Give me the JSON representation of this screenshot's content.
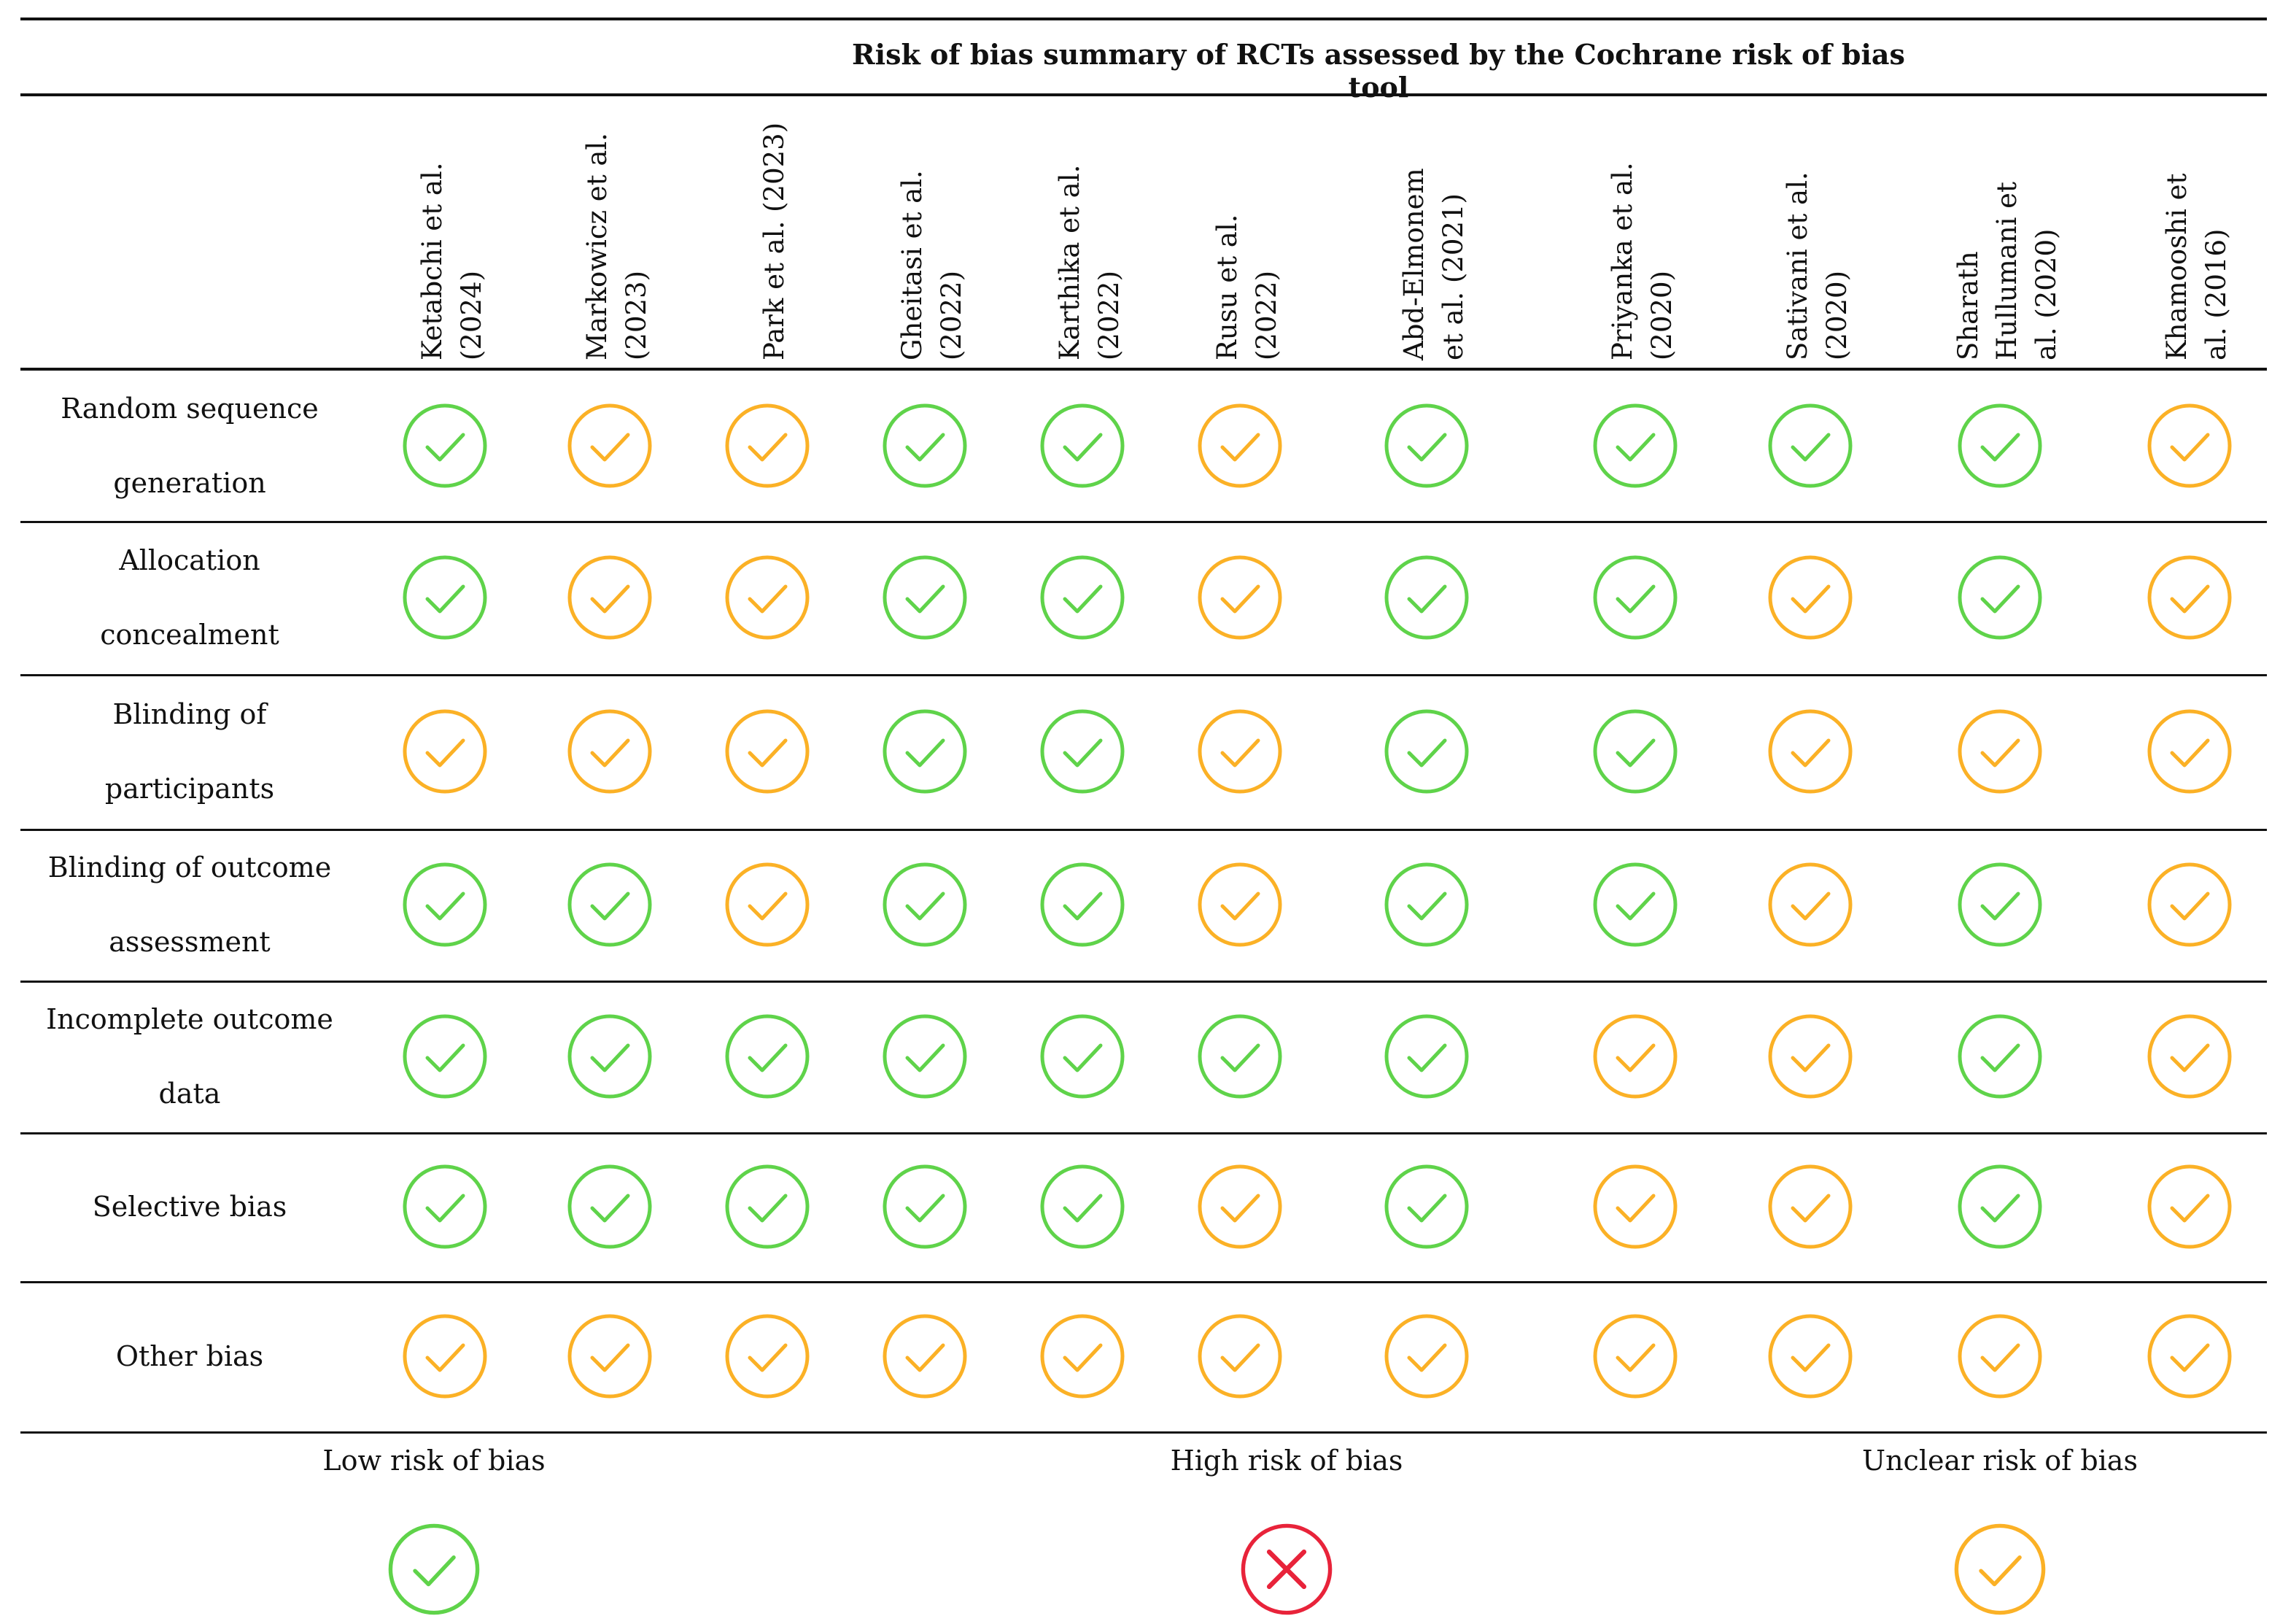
{
  "title": "Risk of bias summary of RCTs assessed by the Cochrane risk of bias tool",
  "colors": {
    "low": "#5fd34a",
    "unclear": "#fbb126",
    "high": "#e8233a",
    "rule": "#111111"
  },
  "studies": [
    {
      "line1": "Ketabchi et al.",
      "line2": "(2024)"
    },
    {
      "line1": "Markowicz et al.",
      "line2": "(2023)"
    },
    {
      "line1": "Park et al. (2023)",
      "line2": ""
    },
    {
      "line1": "Gheitasi et al.",
      "line2": "(2022)"
    },
    {
      "line1": "Karthika et al.",
      "line2": "(2022)"
    },
    {
      "line1": "Rusu et al.",
      "line2": "(2022)"
    },
    {
      "line1": "Abd-Elmonem",
      "line2": "et al. (2021)"
    },
    {
      "line1": "Priyanka et al.",
      "line2": "(2020)"
    },
    {
      "line1": "Sativani et al.",
      "line2": "(2020)"
    },
    {
      "line1": "Sharath",
      "line2": "Hullumani et",
      "line3": "al. (2020)"
    },
    {
      "line1": "Khamooshi et",
      "line2": "al. (2016)"
    }
  ],
  "domains": [
    {
      "line1": "Random sequence",
      "line2": "generation",
      "ratings": [
        "low",
        "unclear",
        "unclear",
        "low",
        "low",
        "unclear",
        "low",
        "low",
        "low",
        "low",
        "unclear"
      ]
    },
    {
      "line1": "Allocation",
      "line2": "concealment",
      "ratings": [
        "low",
        "unclear",
        "unclear",
        "low",
        "low",
        "unclear",
        "low",
        "low",
        "unclear",
        "low",
        "unclear"
      ]
    },
    {
      "line1": "Blinding of",
      "line2": "participants",
      "ratings": [
        "unclear",
        "unclear",
        "unclear",
        "low",
        "low",
        "unclear",
        "low",
        "low",
        "unclear",
        "unclear",
        "unclear"
      ]
    },
    {
      "line1": "Blinding of outcome",
      "line2": "assessment",
      "ratings": [
        "low",
        "low",
        "unclear",
        "low",
        "low",
        "unclear",
        "low",
        "low",
        "unclear",
        "low",
        "unclear"
      ]
    },
    {
      "line1": "Incomplete outcome",
      "line2": "data",
      "ratings": [
        "low",
        "low",
        "low",
        "low",
        "low",
        "low",
        "low",
        "unclear",
        "unclear",
        "low",
        "unclear"
      ]
    },
    {
      "line1": "Selective bias",
      "line2": "",
      "ratings": [
        "low",
        "low",
        "low",
        "low",
        "low",
        "unclear",
        "low",
        "unclear",
        "unclear",
        "low",
        "unclear"
      ]
    },
    {
      "line1": "Other bias",
      "line2": "",
      "ratings": [
        "unclear",
        "unclear",
        "unclear",
        "unclear",
        "unclear",
        "unclear",
        "unclear",
        "unclear",
        "unclear",
        "unclear",
        "unclear"
      ]
    }
  ],
  "legend": [
    {
      "label": "Low risk of bias",
      "icon": "check-circle-icon",
      "level": "low"
    },
    {
      "label": "High risk of bias",
      "icon": "x-circle-icon",
      "level": "high"
    },
    {
      "label": "Unclear risk of bias",
      "icon": "check-circle-icon",
      "level": "unclear"
    }
  ]
}
